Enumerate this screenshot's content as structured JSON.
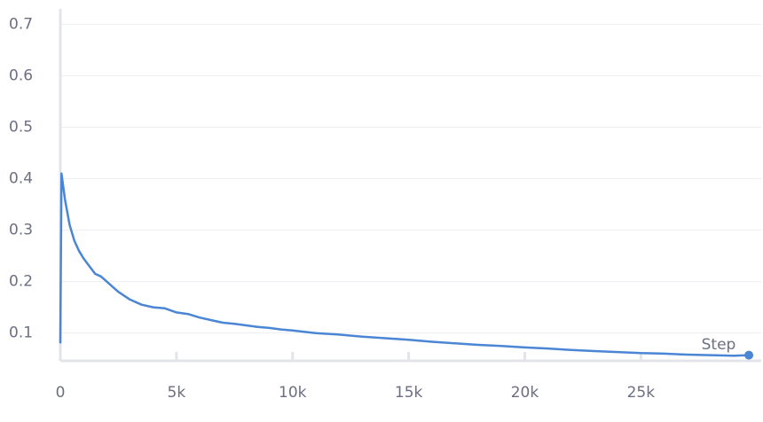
{
  "chart_data": {
    "type": "line",
    "x_label": "Step",
    "x": [
      0,
      50,
      200,
      400,
      600,
      800,
      1000,
      1250,
      1500,
      1750,
      2000,
      2500,
      3000,
      3500,
      4000,
      4500,
      5000,
      5500,
      6000,
      6500,
      7000,
      7500,
      8000,
      8500,
      9000,
      9500,
      10000,
      11000,
      12000,
      13000,
      14000,
      15000,
      16000,
      17000,
      18000,
      19000,
      20000,
      21000,
      22000,
      23000,
      24000,
      25000,
      26000,
      27000,
      28000,
      29000,
      29650
    ],
    "values": [
      0.08,
      0.41,
      0.36,
      0.31,
      0.28,
      0.26,
      0.245,
      0.23,
      0.215,
      0.21,
      0.2,
      0.18,
      0.165,
      0.155,
      0.15,
      0.148,
      0.14,
      0.137,
      0.13,
      0.125,
      0.12,
      0.118,
      0.115,
      0.112,
      0.11,
      0.107,
      0.105,
      0.1,
      0.097,
      0.093,
      0.09,
      0.087,
      0.083,
      0.08,
      0.077,
      0.075,
      0.072,
      0.07,
      0.067,
      0.065,
      0.063,
      0.061,
      0.06,
      0.058,
      0.057,
      0.056,
      0.057
    ],
    "color": "#4a86d4",
    "xlim": [
      0,
      29800
    ],
    "ylim": [
      0.046,
      0.73
    ],
    "xticks": [
      0,
      {
        "value": 5000,
        "label": "5k"
      },
      {
        "value": 10000,
        "label": "10k"
      },
      {
        "value": 15000,
        "label": "15k"
      },
      {
        "value": 20000,
        "label": "20k"
      },
      {
        "value": 25000,
        "label": "25k"
      }
    ],
    "yticks": [
      0.1,
      0.2,
      0.3,
      0.4,
      0.5,
      0.6,
      0.7
    ],
    "grid": true
  }
}
